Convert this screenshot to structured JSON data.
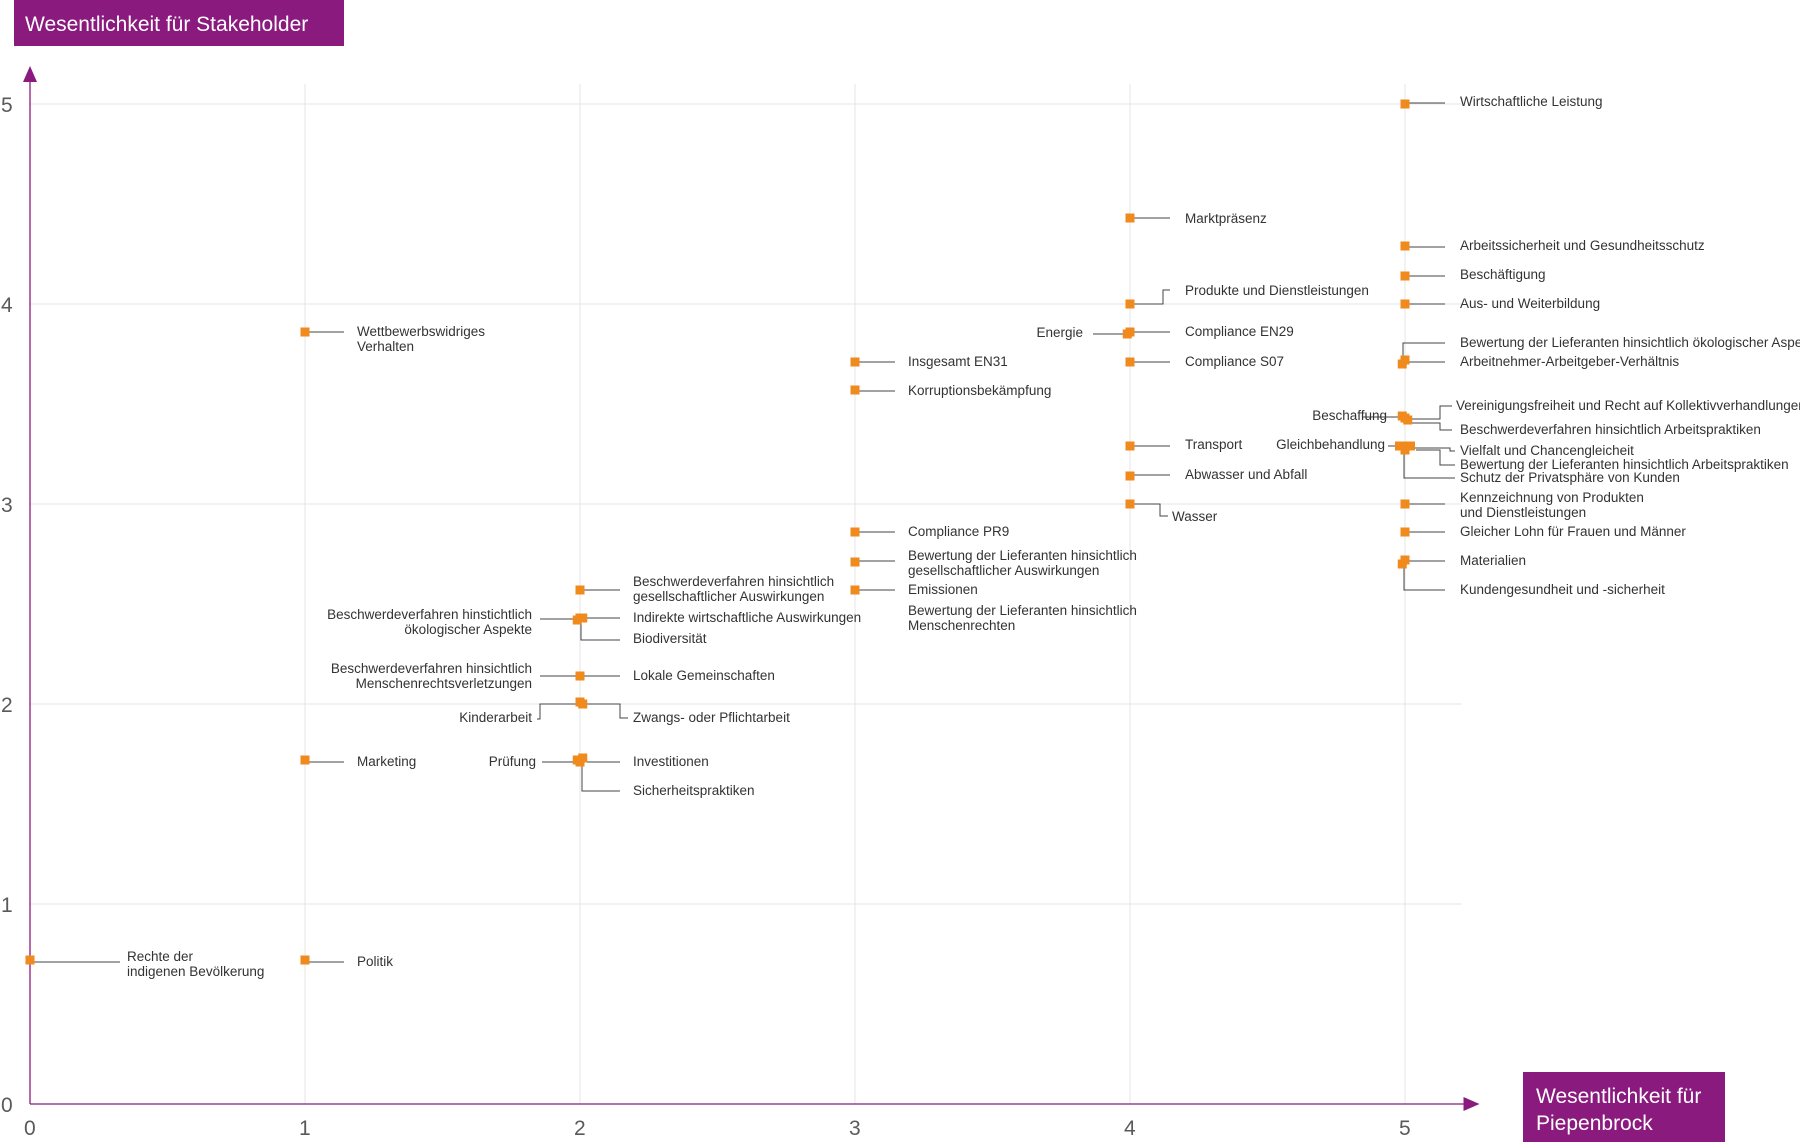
{
  "colors": {
    "accent": "#8b1a7e",
    "point": "#f08a1c",
    "grid": "#e4e4e4",
    "text": "#333333"
  },
  "chart_data": {
    "type": "scatter",
    "title": "",
    "xlabel": "Wesentlichkeit für Piepenbrock",
    "xlabel_lines": [
      "Wesentlichkeit für",
      "Piepenbrock"
    ],
    "ylabel": "Wesentlichkeit für Stakeholder",
    "xlim": [
      0,
      5.3
    ],
    "ylim": [
      0,
      5.2
    ],
    "x_ticks": [
      0,
      1,
      2,
      3,
      4,
      5
    ],
    "y_ticks": [
      0,
      1,
      2,
      3,
      4,
      5
    ],
    "grid": true,
    "points": [
      {
        "label": [
          "Wirtschaftliche Leistung"
        ],
        "x": 5,
        "y": 5.0
      },
      {
        "label": [
          "Marktpräsenz"
        ],
        "x": 4,
        "y": 4.43
      },
      {
        "label": [
          "Arbeitssicherheit und Gesundheitsschutz"
        ],
        "x": 5,
        "y": 4.29
      },
      {
        "label": [
          "Beschäftigung"
        ],
        "x": 5,
        "y": 4.14
      },
      {
        "label": [
          "Aus- und Weiterbildung"
        ],
        "x": 5,
        "y": 4.0
      },
      {
        "label": [
          "Produkte und Dienstleistungen"
        ],
        "x": 4,
        "y": 4.0
      },
      {
        "label": [
          "Compliance EN29"
        ],
        "x": 4,
        "y": 3.86
      },
      {
        "label": [
          "Energie"
        ],
        "x": 3.99,
        "y": 3.85
      },
      {
        "label": [
          "Wettbewerbswidriges",
          "Verhalten"
        ],
        "x": 1,
        "y": 3.86
      },
      {
        "label": [
          "Insgesamt EN31"
        ],
        "x": 3,
        "y": 3.71
      },
      {
        "label": [
          "Compliance S07"
        ],
        "x": 4,
        "y": 3.71
      },
      {
        "label": [
          "Bewertung der Lieferanten hinsichtlich ökologischer Aspekte"
        ],
        "x": 5,
        "y": 3.72
      },
      {
        "label": [
          "Arbeitnehmer-Arbeitgeber-Verhältnis"
        ],
        "x": 4.99,
        "y": 3.7
      },
      {
        "label": [
          "Korruptionsbekämpfung"
        ],
        "x": 3,
        "y": 3.57
      },
      {
        "label": [
          "Beschaffung"
        ],
        "x": 4.99,
        "y": 3.44
      },
      {
        "label": [
          "Vereinigungsfreiheit und Recht auf Kollektivverhandlungen"
        ],
        "x": 5,
        "y": 3.43
      },
      {
        "label": [
          "Beschwerdeverfahren hinsichtlich Arbeitspraktiken"
        ],
        "x": 5.01,
        "y": 3.42
      },
      {
        "label": [
          "Transport"
        ],
        "x": 4,
        "y": 3.29
      },
      {
        "label": [
          "Gleichbehandlung"
        ],
        "x": 4.98,
        "y": 3.29
      },
      {
        "label": [
          "Vielfalt und Chancengleicheit"
        ],
        "x": 5.01,
        "y": 3.29
      },
      {
        "label": [
          "Bewertung der Lieferanten hinsichtlich Arbeitspraktiken"
        ],
        "x": 5.02,
        "y": 3.29
      },
      {
        "label": [
          "Schutz der Privatsphäre von Kunden"
        ],
        "x": 5,
        "y": 3.27
      },
      {
        "label": [
          "Abwasser und Abfall"
        ],
        "x": 4,
        "y": 3.14
      },
      {
        "label": [
          "Wasser"
        ],
        "x": 4,
        "y": 3.0
      },
      {
        "label": [
          "Kennzeichnung von Produkten",
          "und Dienstleistungen"
        ],
        "x": 5,
        "y": 3.0
      },
      {
        "label": [
          "Compliance PR9"
        ],
        "x": 3,
        "y": 2.86
      },
      {
        "label": [
          "Gleicher Lohn für Frauen und Männer"
        ],
        "x": 5,
        "y": 2.86
      },
      {
        "label": [
          "Bewertung der Lieferanten hinsichtlich",
          "gesellschaftlicher Auswirkungen"
        ],
        "x": 3,
        "y": 2.71
      },
      {
        "label": [
          "Materialien"
        ],
        "x": 5,
        "y": 2.72
      },
      {
        "label": [
          "Kundengesundheit und -sicherheit"
        ],
        "x": 4.99,
        "y": 2.7
      },
      {
        "label": [
          "Emissionen"
        ],
        "x": 3,
        "y": 2.57
      },
      {
        "label": [
          "Bewertung der Lieferanten hinsichtlich",
          "Menschenrechten"
        ],
        "x": 3,
        "y": 2.57
      },
      {
        "label": [
          "Beschwerdeverfahren hinsichtlich",
          "gesellschaftlicher Auswirkungen"
        ],
        "x": 2,
        "y": 2.57
      },
      {
        "label": [
          "Indirekte wirtschaftliche Auswirkungen"
        ],
        "x": 2.01,
        "y": 2.43
      },
      {
        "label": [
          "Beschwerdeverfahren hinstichtlich",
          "ökologischer Aspekte"
        ],
        "x": 1.99,
        "y": 2.42
      },
      {
        "label": [
          "Biodiversität"
        ],
        "x": 2,
        "y": 2.43
      },
      {
        "label": [
          "Beschwerdeverfahren hinsichtlich",
          "Menschenrechtsverletzungen"
        ],
        "x": 2,
        "y": 2.14
      },
      {
        "label": [
          "Lokale Gemeinschaften"
        ],
        "x": 2,
        "y": 2.14
      },
      {
        "label": [
          "Kinderarbeit"
        ],
        "x": 2,
        "y": 2.01
      },
      {
        "label": [
          "Zwangs- oder Pflichtarbeit"
        ],
        "x": 2.01,
        "y": 2.0
      },
      {
        "label": [
          "Marketing"
        ],
        "x": 1,
        "y": 1.72
      },
      {
        "label": [
          "Prüfung"
        ],
        "x": 1.99,
        "y": 1.72
      },
      {
        "label": [
          "Investitionen"
        ],
        "x": 2.01,
        "y": 1.73
      },
      {
        "label": [
          "Sicherheitspraktiken"
        ],
        "x": 2,
        "y": 1.71
      },
      {
        "label": [
          "Rechte der",
          "indigenen Bevölkerung"
        ],
        "x": 0,
        "y": 0.72
      },
      {
        "label": [
          "Politik"
        ],
        "x": 1,
        "y": 0.72
      }
    ]
  }
}
